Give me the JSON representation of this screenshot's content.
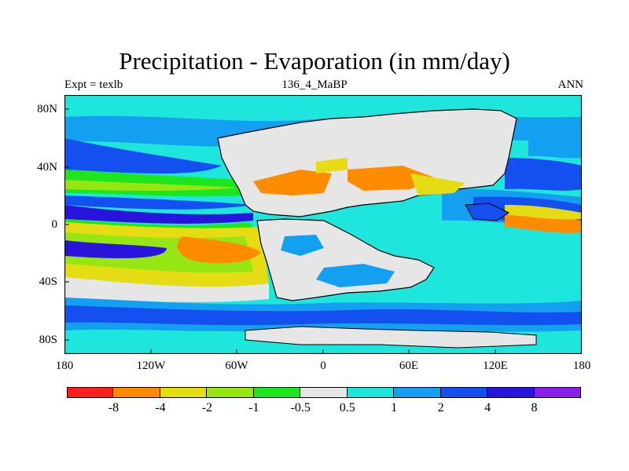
{
  "header": {
    "title": "Precipitation - Evaporation (in mm/day)",
    "experiment": "Expt = texlb",
    "period": "136_4_MaBP",
    "season": "ANN"
  },
  "axes": {
    "lat_labels": [
      "80N",
      "40N",
      "0",
      "40S",
      "80S"
    ],
    "lon_labels": [
      "180",
      "120W",
      "60W",
      "0",
      "60E",
      "120E",
      "180"
    ]
  },
  "colorbar": {
    "colors": [
      "#ff1e1e",
      "#ff8c00",
      "#e6dc14",
      "#96e614",
      "#1ee61e",
      "#e6e6e6",
      "#1ee6dc",
      "#14a0f0",
      "#1450f0",
      "#2814dc",
      "#8c1eeb"
    ],
    "labels": [
      "-8",
      "-4",
      "-2",
      "-1",
      "-0.5",
      "0.5",
      "1",
      "2",
      "4",
      "8"
    ]
  },
  "colors": {
    "land": "#e6e6e6",
    "land_outline": "#000000",
    "frame": "#000000"
  }
}
